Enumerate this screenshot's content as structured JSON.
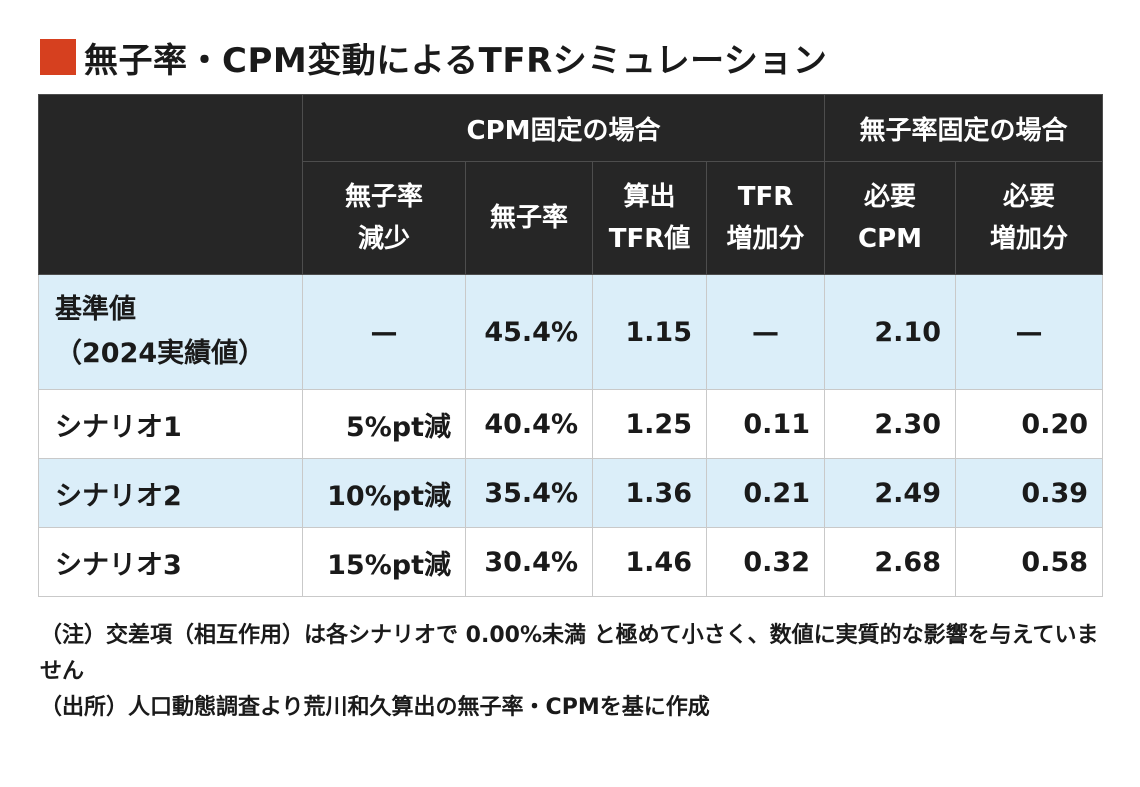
{
  "title": "無子率・CPM変動によるTFRシミュレーション",
  "colors": {
    "title_marker": "#d6401f",
    "header_bg": "#262626",
    "header_text": "#ffffff",
    "row_highlight": "#dbeef9"
  },
  "header": {
    "group_cpm_fixed": "CPM固定の場合",
    "group_childless_fixed": "無子率固定の場合",
    "columns": [
      [
        "無子率",
        "減少"
      ],
      [
        "無子率"
      ],
      [
        "算出",
        "TFR値"
      ],
      [
        "TFR",
        "増加分"
      ],
      [
        "必要",
        "CPM"
      ],
      [
        "必要",
        "増加分"
      ]
    ]
  },
  "rows": [
    {
      "label": [
        "基準値",
        "（2024実績値）"
      ],
      "cells": [
        "—",
        "45.4%",
        "1.15",
        "—",
        "2.10",
        "—"
      ]
    },
    {
      "label": [
        "シナリオ1"
      ],
      "cells": [
        "5%pt減",
        "40.4%",
        "1.25",
        "0.11",
        "2.30",
        "0.20"
      ]
    },
    {
      "label": [
        "シナリオ2"
      ],
      "cells": [
        "10%pt減",
        "35.4%",
        "1.36",
        "0.21",
        "2.49",
        "0.39"
      ]
    },
    {
      "label": [
        "シナリオ3"
      ],
      "cells": [
        "15%pt減",
        "30.4%",
        "1.46",
        "0.32",
        "2.68",
        "0.58"
      ]
    }
  ],
  "notes": [
    "（注）交差項（相互作用）は各シナリオで 0.00%未満 と極めて小さく、数値に実質的な影響を与えていません",
    "（出所）人口動態調査より荒川和久算出の無子率・CPMを基に作成"
  ]
}
